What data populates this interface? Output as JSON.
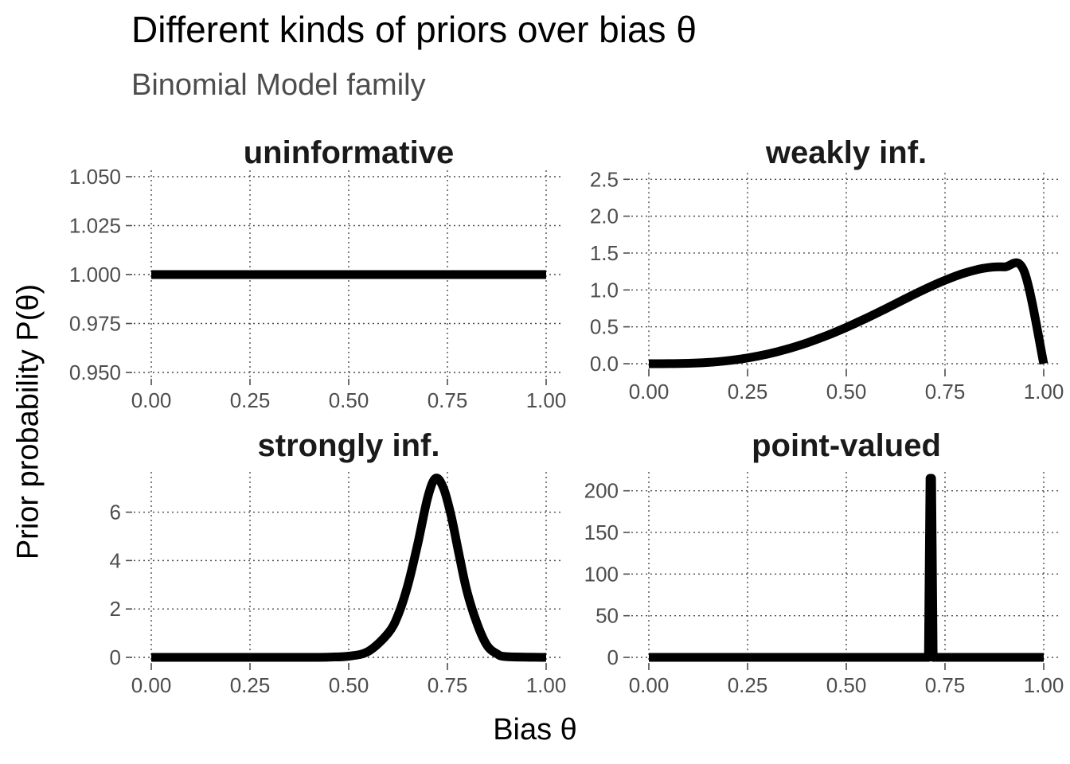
{
  "title": "Different kinds of priors over bias θ",
  "subtitle": "Binomial Model family",
  "xlabel": "Bias θ",
  "ylabel": "Prior probability P(θ)",
  "colors": {
    "line": "#000000",
    "grid": "#4d4d4d",
    "tick_label": "#4d4d4d",
    "panel_title": "#1a1a1a"
  },
  "chart_data": [
    {
      "type": "line",
      "title": "uninformative",
      "xlim": [
        0,
        1
      ],
      "ylim": [
        0.95,
        1.05
      ],
      "xticks": [
        0,
        0.25,
        0.5,
        0.75,
        1
      ],
      "xtick_labels": [
        "0.00",
        "0.25",
        "0.50",
        "0.75",
        "1.00"
      ],
      "yticks": [
        0.95,
        0.975,
        1.0,
        1.025,
        1.05
      ],
      "ytick_labels": [
        "0.950",
        "0.975",
        "1.000",
        "1.025",
        "1.050"
      ],
      "grid": true,
      "x": [
        0,
        0.25,
        0.5,
        0.75,
        1
      ],
      "y": [
        1,
        1,
        1,
        1,
        1
      ]
    },
    {
      "type": "line",
      "title": "weakly inf.",
      "xlim": [
        0,
        1
      ],
      "ylim": [
        0,
        2.46
      ],
      "xticks": [
        0,
        0.25,
        0.5,
        0.75,
        1
      ],
      "xtick_labels": [
        "0.00",
        "0.25",
        "0.50",
        "0.75",
        "1.00"
      ],
      "yticks": [
        0,
        0.5,
        1,
        1.5,
        2,
        2.5
      ],
      "ytick_labels": [
        "0.0",
        "0.5",
        "1.0",
        "1.5",
        "2.0",
        "2.5"
      ],
      "grid": true,
      "x": [
        0,
        0.05,
        0.1,
        0.15,
        0.2,
        0.25,
        0.3,
        0.35,
        0.4,
        0.45,
        0.5,
        0.55,
        0.6,
        0.65,
        0.7,
        0.75,
        0.8,
        0.85,
        0.9,
        0.95,
        1
      ],
      "y": [
        0,
        0.0006,
        0.005,
        0.017,
        0.041,
        0.078,
        0.13,
        0.198,
        0.282,
        0.38,
        0.492,
        0.615,
        0.746,
        0.881,
        1.012,
        1.131,
        1.23,
        1.296,
        1.312,
        1.257,
        0
      ]
    },
    {
      "type": "line",
      "title": "strongly inf.",
      "xlim": [
        0,
        1
      ],
      "ylim": [
        0,
        7.4
      ],
      "xticks": [
        0,
        0.25,
        0.5,
        0.75,
        1
      ],
      "xtick_labels": [
        "0.00",
        "0.25",
        "0.50",
        "0.75",
        "1.00"
      ],
      "yticks": [
        0,
        2,
        4,
        6
      ],
      "ytick_labels": [
        "0",
        "2",
        "4",
        "6"
      ],
      "grid": true,
      "x": [
        0,
        0.1,
        0.2,
        0.3,
        0.4,
        0.45,
        0.5,
        0.55,
        0.6,
        0.625,
        0.65,
        0.675,
        0.7,
        0.72,
        0.74,
        0.76,
        0.78,
        0.8,
        0.825,
        0.85,
        0.875,
        0.9,
        1
      ],
      "y": [
        0,
        0,
        0,
        0,
        0,
        0.01,
        0.05,
        0.25,
        1.0,
        1.75,
        3.0,
        4.7,
        6.6,
        7.4,
        7.0,
        5.8,
        4.2,
        2.7,
        1.4,
        0.5,
        0.15,
        0.03,
        0
      ]
    },
    {
      "type": "line",
      "title": "point-valued",
      "xlim": [
        0,
        1
      ],
      "ylim": [
        0,
        215
      ],
      "xticks": [
        0,
        0.25,
        0.5,
        0.75,
        1
      ],
      "xtick_labels": [
        "0.00",
        "0.25",
        "0.50",
        "0.75",
        "1.00"
      ],
      "yticks": [
        0,
        50,
        100,
        150,
        200
      ],
      "ytick_labels": [
        "0",
        "50",
        "100",
        "150",
        "200"
      ],
      "grid": true,
      "x": [
        0,
        0.708,
        0.712,
        0.716,
        0.72,
        1
      ],
      "y": [
        0,
        0,
        215,
        215,
        0,
        0
      ]
    }
  ]
}
